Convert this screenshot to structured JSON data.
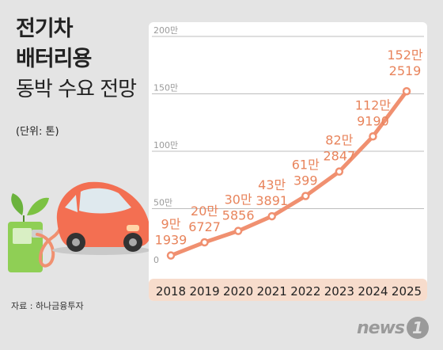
{
  "title": {
    "line1": "전기차",
    "line2": "배터리용",
    "line3": "동박 수요 전망"
  },
  "unit": "(단위: 톤)",
  "source": "자료 : 하나금융투자",
  "logo": {
    "text": "news",
    "mark": "1"
  },
  "colors": {
    "line": "#f09070",
    "label": "#e8845c",
    "panel": "#ffffff",
    "axis_band": "#f7dccc",
    "grid": "#bdbdbd"
  },
  "chart_data": {
    "type": "line",
    "categories": [
      "2018",
      "2019",
      "2020",
      "2021",
      "2022",
      "2023",
      "2024",
      "2025"
    ],
    "values": [
      91939,
      206727,
      305856,
      433891,
      610399,
      822847,
      1129190,
      1522519
    ],
    "labels": [
      [
        "9만",
        "1939"
      ],
      [
        "20만",
        "6727"
      ],
      [
        "30만",
        "5856"
      ],
      [
        "43만",
        "3891"
      ],
      [
        "61만",
        "399"
      ],
      [
        "82만",
        "2847"
      ],
      [
        "112만",
        "9190"
      ],
      [
        "152만",
        "2519"
      ]
    ],
    "y_ticks": [
      {
        "value": 0,
        "label": "0"
      },
      {
        "value": 500000,
        "label": "50만"
      },
      {
        "value": 1000000,
        "label": "100만"
      },
      {
        "value": 1500000,
        "label": "150만"
      },
      {
        "value": 2000000,
        "label": "200만"
      }
    ],
    "ylim": [
      0,
      2000000
    ],
    "grid": true
  }
}
